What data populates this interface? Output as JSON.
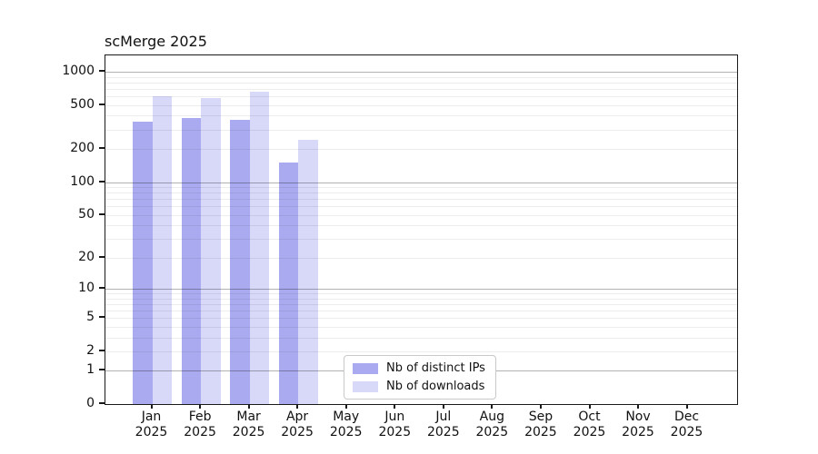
{
  "title": "scMerge 2025",
  "colors": {
    "distinct_ips": "#aaaaf0",
    "downloads": "#d8d8f8",
    "axis": "#1a1a1a",
    "background": "#ffffff"
  },
  "legend": {
    "items": [
      {
        "label": "Nb of distinct IPs",
        "color": "#aaaaf0"
      },
      {
        "label": "Nb of downloads",
        "color": "#d8d8f8"
      }
    ]
  },
  "chart_data": {
    "type": "bar",
    "title": "scMerge 2025",
    "categories": [
      "Jan 2025",
      "Feb 2025",
      "Mar 2025",
      "Apr 2025",
      "May 2025",
      "Jun 2025",
      "Jul 2025",
      "Aug 2025",
      "Sep 2025",
      "Oct 2025",
      "Nov 2025",
      "Dec 2025"
    ],
    "series": [
      {
        "name": "Nb of distinct IPs",
        "color": "#aaaaf0",
        "values": [
          355,
          380,
          370,
          150,
          null,
          null,
          null,
          null,
          null,
          null,
          null,
          null
        ]
      },
      {
        "name": "Nb of downloads",
        "color": "#d8d8f8",
        "values": [
          600,
          580,
          665,
          240,
          null,
          null,
          null,
          null,
          null,
          null,
          null,
          null
        ]
      }
    ],
    "xlabel": "",
    "ylabel": "",
    "yscale": "log1p",
    "ylim": [
      0,
      1400
    ],
    "yticks": [
      0,
      1,
      2,
      5,
      10,
      20,
      50,
      100,
      200,
      500,
      1000
    ],
    "y_major_gridlines": [
      1,
      10,
      100,
      1000
    ],
    "y_minor_gridlines": [
      2,
      3,
      4,
      5,
      6,
      7,
      8,
      9,
      20,
      30,
      40,
      50,
      60,
      70,
      80,
      90,
      200,
      300,
      400,
      500,
      600,
      700,
      800,
      900
    ],
    "grid": "horizontal",
    "legend_position": "inside lower center"
  }
}
